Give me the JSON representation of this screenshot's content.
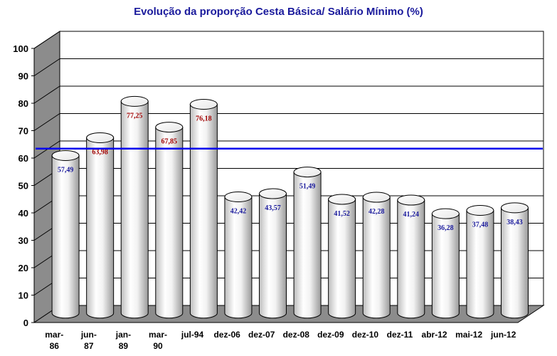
{
  "chart_data": {
    "type": "bar",
    "title": "Evolução da proporção Cesta Básica/ Salário Mínimo (%)",
    "xlabel": "",
    "ylabel": "",
    "ylim": [
      0,
      100
    ],
    "yticks": [
      "0",
      "10",
      "20",
      "30",
      "40",
      "50",
      "60",
      "70",
      "80",
      "90",
      "100"
    ],
    "grid": true,
    "reference_line": 60,
    "colors": {
      "reference_line": "#0000ee",
      "label_high": "#a00000",
      "label_low": "#1a1a9c",
      "bar": "#ffffff",
      "floor": "#8c8c8c",
      "wall": "#8c8c8c"
    },
    "categories": [
      [
        "mar-",
        "86"
      ],
      [
        "jun-",
        "87"
      ],
      [
        "jan-",
        "89"
      ],
      [
        "mar-",
        "90"
      ],
      [
        "jul-94"
      ],
      [
        "dez-06"
      ],
      [
        "dez-07"
      ],
      [
        "dez-08"
      ],
      [
        "dez-09"
      ],
      [
        "dez-10"
      ],
      [
        "dez-11"
      ],
      [
        "abr-12"
      ],
      [
        "mai-12"
      ],
      [
        "jun-12"
      ]
    ],
    "values": [
      57.49,
      63.98,
      77.25,
      67.85,
      76.18,
      42.42,
      43.57,
      51.49,
      41.52,
      42.28,
      41.24,
      36.28,
      37.48,
      38.43
    ],
    "labels": [
      "57,49",
      "63,98",
      "77,25",
      "67,85",
      "76,18",
      "42,42",
      "43,57",
      "51,49",
      "41,52",
      "42,28",
      "41,24",
      "36,28",
      "37,48",
      "38,43"
    ]
  }
}
